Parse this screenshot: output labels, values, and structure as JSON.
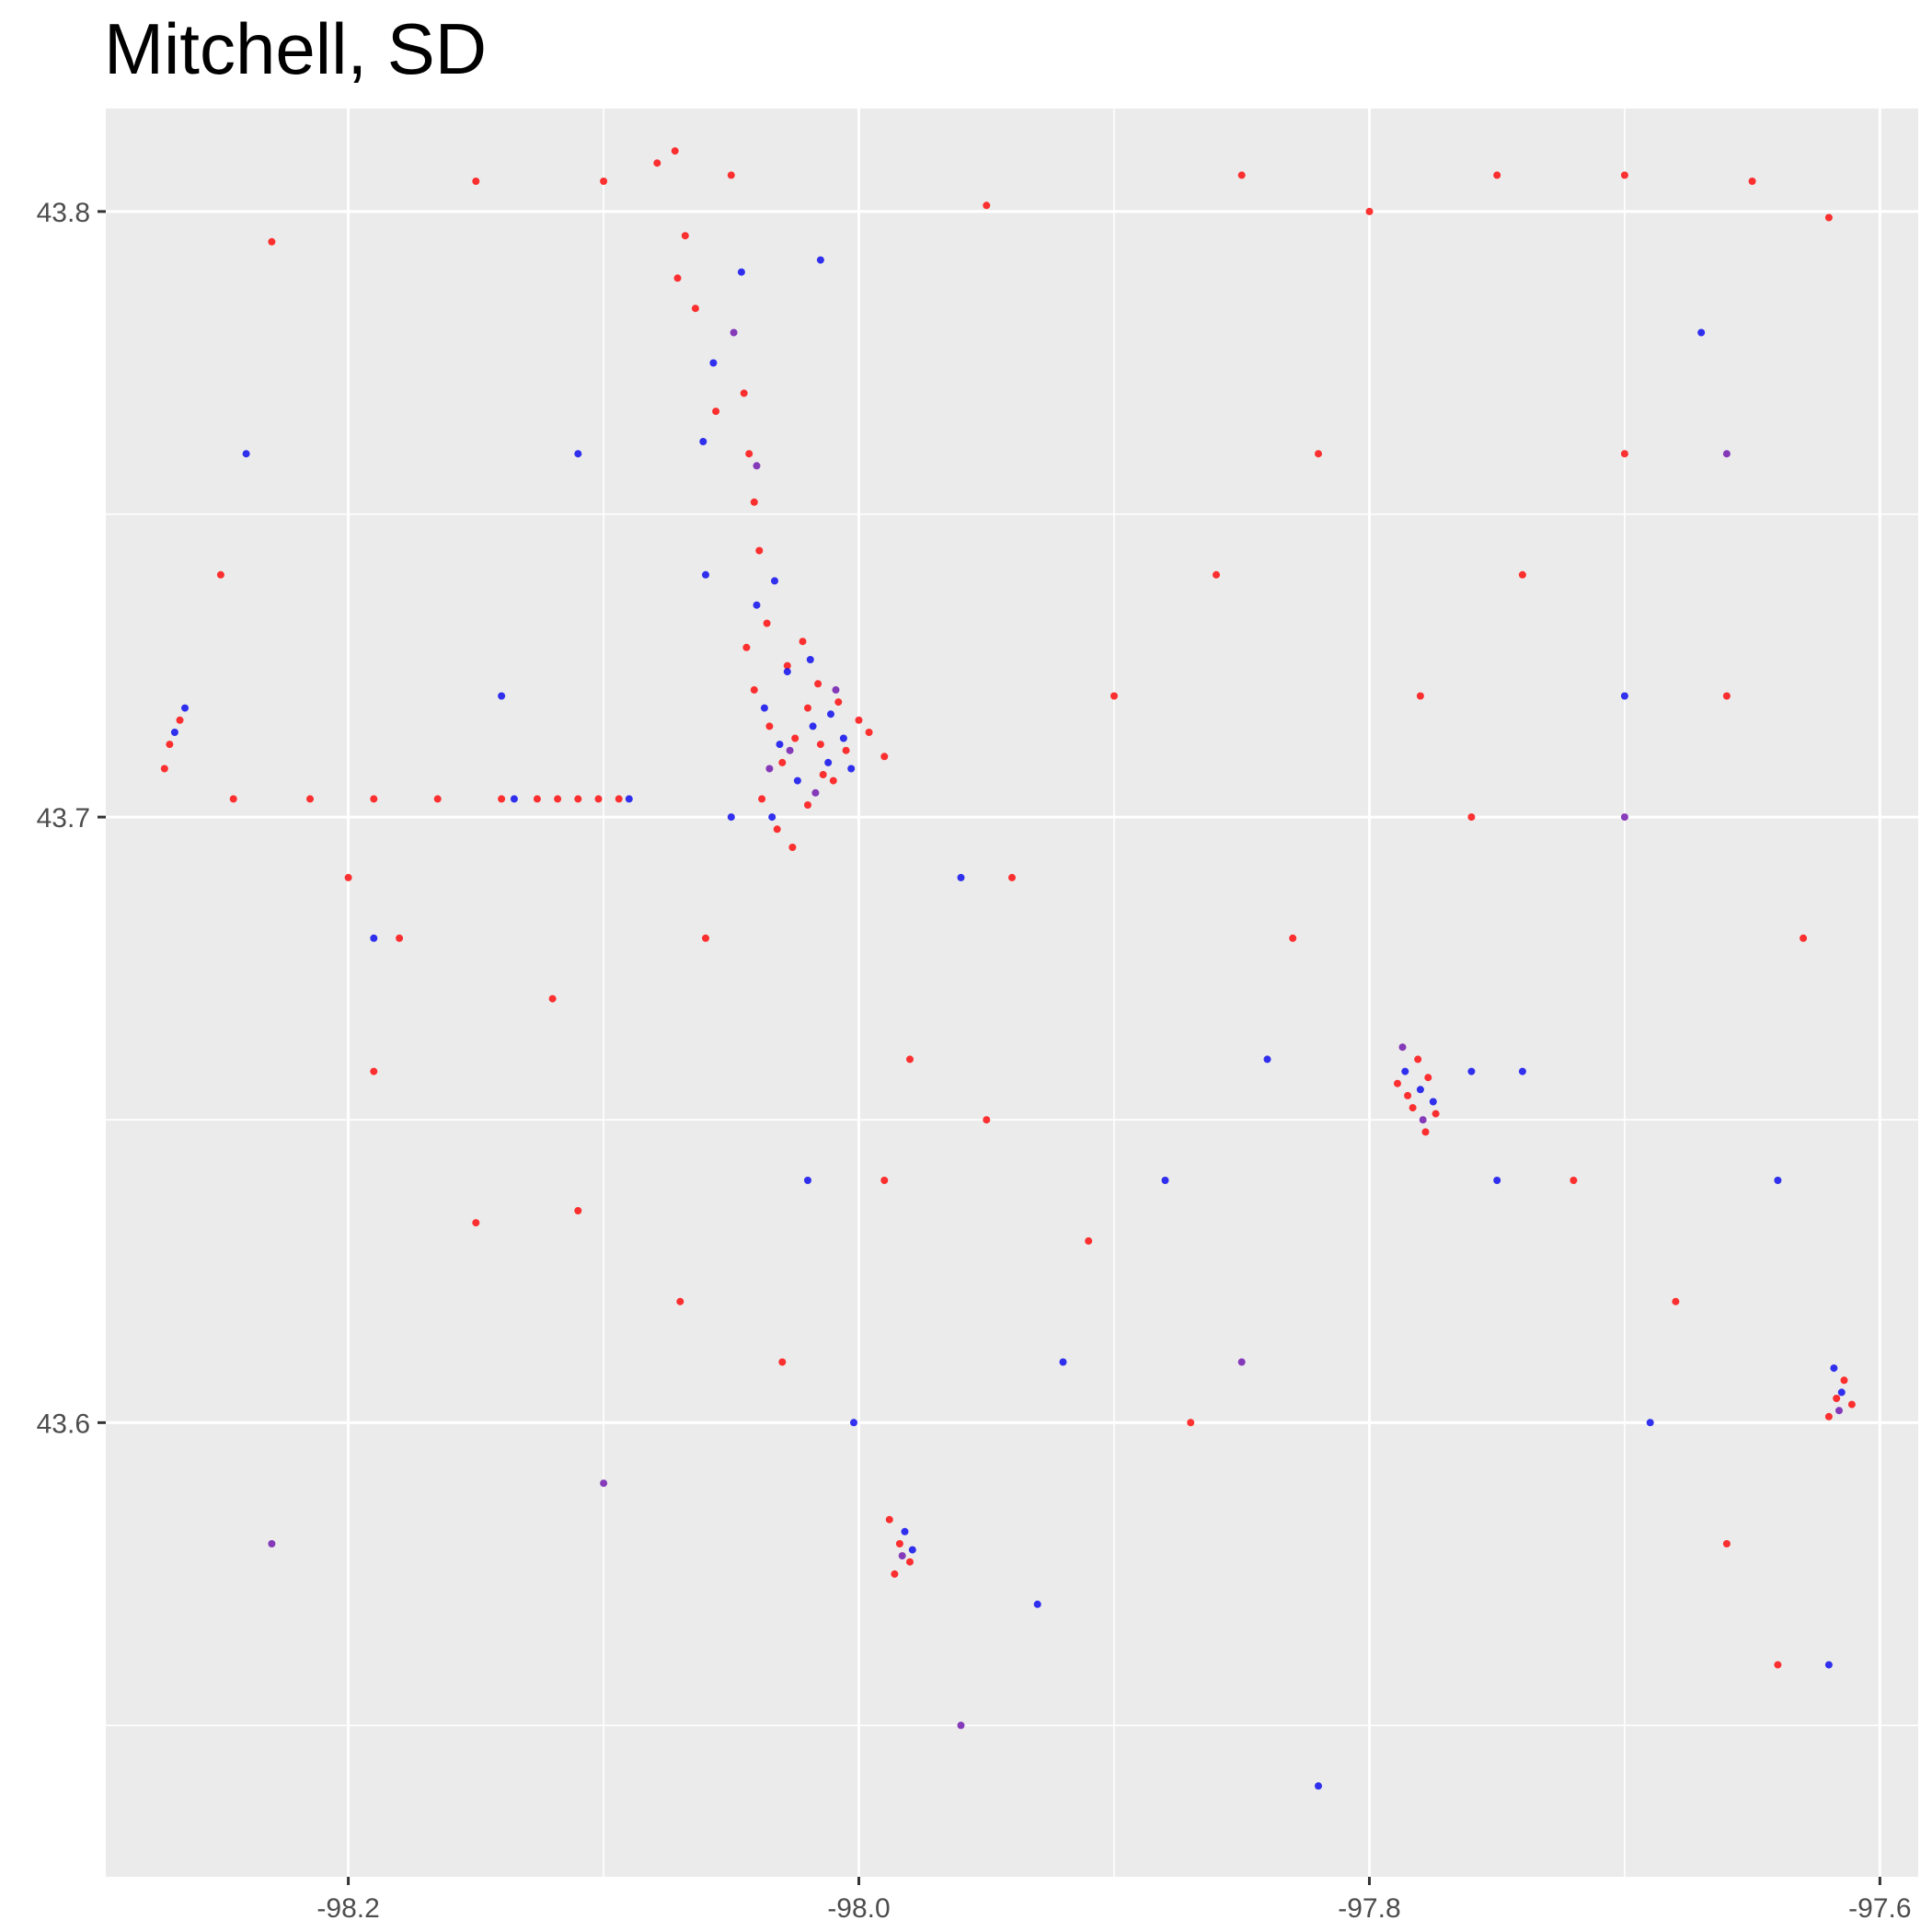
{
  "chart_data": {
    "type": "scatter",
    "title": "Mitchell, SD",
    "xlabel": "",
    "ylabel": "",
    "xlim": [
      -98.295,
      -97.585
    ],
    "ylim": [
      43.525,
      43.817
    ],
    "x_ticks": [
      -98.2,
      -98.0,
      -97.8,
      -97.6
    ],
    "x_tick_labels": [
      "-98.2",
      "-98.0",
      "-97.8",
      "-97.6"
    ],
    "y_ticks": [
      43.6,
      43.7,
      43.8
    ],
    "y_tick_labels": [
      "43.6",
      "43.7",
      "43.8"
    ],
    "grid": true,
    "legend": "none",
    "colors": {
      "panel_background": "#ebebeb",
      "grid_line": "#ffffff",
      "series_red": "#ff0000",
      "series_blue": "#0000ee",
      "series_purple": "#6a0dad"
    },
    "series": [
      {
        "color": "#ff0000",
        "points": [
          [
            -98.041,
            43.721
          ],
          [
            -98.035,
            43.715
          ],
          [
            -98.03,
            43.709
          ],
          [
            -98.025,
            43.713
          ],
          [
            -98.02,
            43.718
          ],
          [
            -98.015,
            43.712
          ],
          [
            -98.01,
            43.706
          ],
          [
            -98.005,
            43.711
          ],
          [
            -98.0,
            43.716
          ],
          [
            -98.038,
            43.703
          ],
          [
            -98.032,
            43.698
          ],
          [
            -98.026,
            43.695
          ],
          [
            -98.02,
            43.702
          ],
          [
            -98.014,
            43.707
          ],
          [
            -98.044,
            43.728
          ],
          [
            -98.036,
            43.732
          ],
          [
            -98.028,
            43.725
          ],
          [
            -98.022,
            43.729
          ],
          [
            -98.016,
            43.722
          ],
          [
            -98.008,
            43.719
          ],
          [
            -97.996,
            43.714
          ],
          [
            -97.99,
            43.71
          ],
          [
            -98.039,
            43.744
          ],
          [
            -98.041,
            43.752
          ],
          [
            -98.043,
            43.76
          ],
          [
            -98.045,
            43.77
          ],
          [
            -98.056,
            43.767
          ],
          [
            -98.064,
            43.784
          ],
          [
            -98.071,
            43.789
          ],
          [
            -98.068,
            43.796
          ],
          [
            -98.072,
            43.81
          ],
          [
            -98.079,
            43.808
          ],
          [
            -98.11,
            43.703
          ],
          [
            -98.118,
            43.703
          ],
          [
            -98.126,
            43.703
          ],
          [
            -98.102,
            43.703
          ],
          [
            -98.094,
            43.703
          ],
          [
            -98.14,
            43.703
          ],
          [
            -98.165,
            43.703
          ],
          [
            -98.19,
            43.703
          ],
          [
            -98.215,
            43.703
          ],
          [
            -98.245,
            43.703
          ],
          [
            -97.789,
            43.656
          ],
          [
            -97.785,
            43.654
          ],
          [
            -97.781,
            43.66
          ],
          [
            -97.777,
            43.657
          ],
          [
            -97.774,
            43.651
          ],
          [
            -97.778,
            43.648
          ],
          [
            -97.783,
            43.652
          ],
          [
            -97.988,
            43.584
          ],
          [
            -97.984,
            43.58
          ],
          [
            -97.98,
            43.577
          ],
          [
            -97.986,
            43.575
          ],
          [
            -97.617,
            43.604
          ],
          [
            -97.614,
            43.607
          ],
          [
            -97.62,
            43.601
          ],
          [
            -97.611,
            43.603
          ],
          [
            -98.27,
            43.712
          ],
          [
            -98.266,
            43.716
          ],
          [
            -98.272,
            43.708
          ],
          [
            -98.19,
            43.658
          ],
          [
            -98.15,
            43.633
          ],
          [
            -98.11,
            43.635
          ],
          [
            -98.07,
            43.62
          ],
          [
            -98.03,
            43.61
          ],
          [
            -97.99,
            43.64
          ],
          [
            -97.95,
            43.65
          ],
          [
            -97.91,
            43.63
          ],
          [
            -97.87,
            43.6
          ],
          [
            -97.83,
            43.68
          ],
          [
            -97.76,
            43.7
          ],
          [
            -97.72,
            43.64
          ],
          [
            -97.68,
            43.62
          ],
          [
            -97.66,
            43.58
          ],
          [
            -97.64,
            43.56
          ],
          [
            -98.23,
            43.795
          ],
          [
            -98.15,
            43.805
          ],
          [
            -98.1,
            43.805
          ],
          [
            -98.05,
            43.806
          ],
          [
            -97.95,
            43.801
          ],
          [
            -97.85,
            43.806
          ],
          [
            -97.8,
            43.8
          ],
          [
            -97.75,
            43.806
          ],
          [
            -97.7,
            43.806
          ],
          [
            -97.65,
            43.805
          ],
          [
            -97.62,
            43.799
          ],
          [
            -98.25,
            43.74
          ],
          [
            -98.2,
            43.69
          ],
          [
            -98.18,
            43.68
          ],
          [
            -98.12,
            43.67
          ],
          [
            -98.06,
            43.68
          ],
          [
            -97.98,
            43.66
          ],
          [
            -97.94,
            43.69
          ],
          [
            -97.9,
            43.72
          ],
          [
            -97.86,
            43.74
          ],
          [
            -97.82,
            43.76
          ],
          [
            -97.78,
            43.72
          ],
          [
            -97.74,
            43.74
          ],
          [
            -97.7,
            43.76
          ],
          [
            -97.66,
            43.72
          ],
          [
            -97.63,
            43.68
          ]
        ]
      },
      {
        "color": "#0000ee",
        "points": [
          [
            -98.037,
            43.718
          ],
          [
            -98.031,
            43.712
          ],
          [
            -98.024,
            43.706
          ],
          [
            -98.018,
            43.715
          ],
          [
            -98.012,
            43.709
          ],
          [
            -98.006,
            43.713
          ],
          [
            -98.034,
            43.7
          ],
          [
            -98.028,
            43.724
          ],
          [
            -98.019,
            43.726
          ],
          [
            -98.011,
            43.717
          ],
          [
            -98.003,
            43.708
          ],
          [
            -98.04,
            43.735
          ],
          [
            -98.033,
            43.739
          ],
          [
            -98.061,
            43.762
          ],
          [
            -98.057,
            43.775
          ],
          [
            -98.046,
            43.79
          ],
          [
            -98.015,
            43.792
          ],
          [
            -98.135,
            43.703
          ],
          [
            -98.09,
            43.703
          ],
          [
            -98.05,
            43.7
          ],
          [
            -97.786,
            43.658
          ],
          [
            -97.78,
            43.655
          ],
          [
            -97.775,
            43.653
          ],
          [
            -97.76,
            43.658
          ],
          [
            -97.74,
            43.658
          ],
          [
            -97.982,
            43.582
          ],
          [
            -97.979,
            43.579
          ],
          [
            -98.002,
            43.6
          ],
          [
            -97.615,
            43.605
          ],
          [
            -97.618,
            43.609
          ],
          [
            -98.268,
            43.714
          ],
          [
            -98.264,
            43.718
          ],
          [
            -98.24,
            43.76
          ],
          [
            -98.19,
            43.68
          ],
          [
            -98.14,
            43.72
          ],
          [
            -98.06,
            43.74
          ],
          [
            -97.96,
            43.69
          ],
          [
            -97.92,
            43.61
          ],
          [
            -97.88,
            43.64
          ],
          [
            -97.84,
            43.66
          ],
          [
            -97.7,
            43.72
          ],
          [
            -97.67,
            43.78
          ],
          [
            -97.64,
            43.64
          ],
          [
            -98.11,
            43.76
          ],
          [
            -98.02,
            43.64
          ],
          [
            -97.93,
            43.57
          ],
          [
            -97.82,
            43.54
          ],
          [
            -97.75,
            43.64
          ],
          [
            -97.69,
            43.6
          ],
          [
            -97.62,
            43.56
          ]
        ]
      },
      {
        "color": "#6a0dad",
        "points": [
          [
            -98.027,
            43.711
          ],
          [
            -98.017,
            43.704
          ],
          [
            -98.009,
            43.721
          ],
          [
            -98.035,
            43.708
          ],
          [
            -98.04,
            43.758
          ],
          [
            -98.049,
            43.78
          ],
          [
            -97.787,
            43.662
          ],
          [
            -97.779,
            43.65
          ],
          [
            -97.983,
            43.578
          ],
          [
            -97.616,
            43.602
          ],
          [
            -98.23,
            43.58
          ],
          [
            -98.1,
            43.59
          ],
          [
            -97.96,
            43.55
          ],
          [
            -97.85,
            43.61
          ],
          [
            -97.7,
            43.7
          ],
          [
            -97.66,
            43.76
          ]
        ]
      }
    ]
  }
}
